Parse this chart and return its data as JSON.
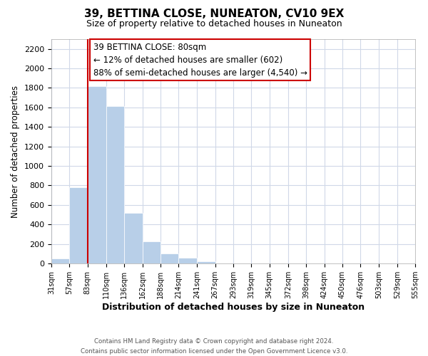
{
  "title": "39, BETTINA CLOSE, NUNEATON, CV10 9EX",
  "subtitle": "Size of property relative to detached houses in Nuneaton",
  "xlabel": "Distribution of detached houses by size in Nuneaton",
  "ylabel": "Number of detached properties",
  "bar_edges": [
    31,
    57,
    83,
    110,
    136,
    162,
    188,
    214,
    241,
    267,
    293,
    319,
    345,
    372,
    398,
    424,
    450,
    476,
    503,
    529,
    555
  ],
  "bar_heights": [
    50,
    780,
    1820,
    1610,
    520,
    230,
    105,
    55,
    22,
    0,
    0,
    0,
    0,
    0,
    0,
    0,
    0,
    0,
    0,
    0
  ],
  "bar_color": "#b8cfe8",
  "bar_edge_color": "#b8cfe8",
  "property_line_x": 83,
  "property_line_color": "#cc0000",
  "ylim": [
    0,
    2300
  ],
  "yticks": [
    0,
    200,
    400,
    600,
    800,
    1000,
    1200,
    1400,
    1600,
    1800,
    2000,
    2200
  ],
  "annotation_title": "39 BETTINA CLOSE: 80sqm",
  "annotation_line1": "← 12% of detached houses are smaller (602)",
  "annotation_line2": "88% of semi-detached houses are larger (4,540) →",
  "footer_line1": "Contains HM Land Registry data © Crown copyright and database right 2024.",
  "footer_line2": "Contains public sector information licensed under the Open Government Licence v3.0.",
  "tick_labels": [
    "31sqm",
    "57sqm",
    "83sqm",
    "110sqm",
    "136sqm",
    "162sqm",
    "188sqm",
    "214sqm",
    "241sqm",
    "267sqm",
    "293sqm",
    "319sqm",
    "345sqm",
    "372sqm",
    "398sqm",
    "424sqm",
    "450sqm",
    "476sqm",
    "503sqm",
    "529sqm",
    "555sqm"
  ],
  "grid_color": "#d0d8e8",
  "background_color": "#ffffff"
}
